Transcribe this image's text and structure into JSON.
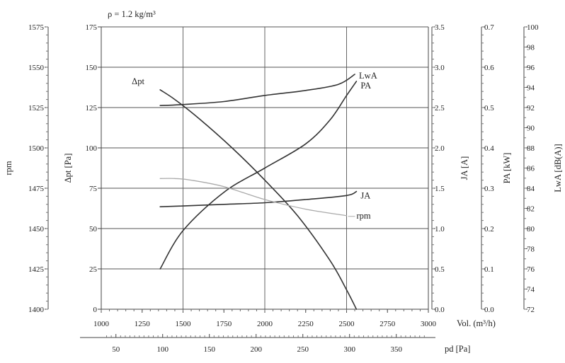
{
  "chart_data": {
    "type": "line",
    "title": "ρ = 1.2 kg/m³",
    "x_axis": {
      "label": "Vol. (m³/h)",
      "range": [
        1000,
        3000
      ],
      "ticks": [
        "1000",
        "1250",
        "1500",
        "1750",
        "2000",
        "2250",
        "2500",
        "2750",
        "3000"
      ],
      "grid": [
        1500,
        2000,
        2500
      ]
    },
    "x2_axis": {
      "label": "pd [Pa]",
      "range": [
        34.3,
        384.3
      ],
      "ticks": [
        "50",
        "100",
        "150",
        "200",
        "250",
        "300",
        "350"
      ]
    },
    "y_axes": [
      {
        "id": "rpm",
        "label": "rpm",
        "range": [
          1400,
          1575
        ],
        "ticks": [
          "1400",
          "1425",
          "1450",
          "1475",
          "1500",
          "1525",
          "1550",
          "1575"
        ]
      },
      {
        "id": "dpt",
        "label": "Δpt [Pa]",
        "range": [
          0,
          175
        ],
        "ticks": [
          "0",
          "25",
          "50",
          "75",
          "100",
          "125",
          "150",
          "175"
        ]
      },
      {
        "id": "ja",
        "label": "JA [A]",
        "range": [
          0,
          3.5
        ],
        "ticks": [
          "0.0",
          "0.5",
          "1.0",
          "1.5",
          "2.0",
          "2.5",
          "3.0",
          "3.5"
        ]
      },
      {
        "id": "pa",
        "label": "PA [kW]",
        "range": [
          0,
          0.7
        ],
        "ticks": [
          "0.0",
          "0.1",
          "0.2",
          "0.3",
          "0.4",
          "0.5",
          "0.6",
          "0.7"
        ]
      },
      {
        "id": "lwa",
        "label": "LwA [dB(A)]",
        "range": [
          72,
          100
        ],
        "ticks": [
          "72",
          "74",
          "76",
          "78",
          "80",
          "82",
          "84",
          "86",
          "88",
          "90",
          "92",
          "94",
          "96",
          "98",
          "100"
        ]
      }
    ],
    "grid": true,
    "series": [
      {
        "name": "Δpt",
        "axis": "dpt",
        "color": "#333333",
        "x": [
          1360,
          1450,
          1600,
          1800,
          2000,
          2200,
          2400,
          2500,
          2560
        ],
        "y": [
          136,
          130,
          118,
          100,
          80,
          58,
          30,
          12,
          0
        ]
      },
      {
        "name": "PA",
        "axis": "pa",
        "color": "#333333",
        "x": [
          1360,
          1500,
          1750,
          2000,
          2250,
          2400,
          2500,
          2560
        ],
        "y": [
          0.1,
          0.195,
          0.29,
          0.35,
          0.41,
          0.47,
          0.53,
          0.565
        ]
      },
      {
        "name": "JA",
        "axis": "ja",
        "color": "#333333",
        "x": [
          1360,
          1500,
          1750,
          2000,
          2250,
          2500,
          2560
        ],
        "y": [
          1.27,
          1.28,
          1.3,
          1.32,
          1.36,
          1.41,
          1.46
        ]
      },
      {
        "name": "LwA",
        "axis": "lwa",
        "color": "#333333",
        "x": [
          1360,
          1500,
          1750,
          2000,
          2250,
          2450,
          2550
        ],
        "y": [
          92.2,
          92.3,
          92.6,
          93.2,
          93.7,
          94.3,
          95.3
        ]
      },
      {
        "name": "rpm",
        "axis": "rpm",
        "color": "#aaaaaa",
        "x": [
          1360,
          1450,
          1550,
          1750,
          2000,
          2250,
          2500
        ],
        "y": [
          1481,
          1481,
          1480,
          1476,
          1468,
          1462,
          1458
        ]
      }
    ]
  }
}
